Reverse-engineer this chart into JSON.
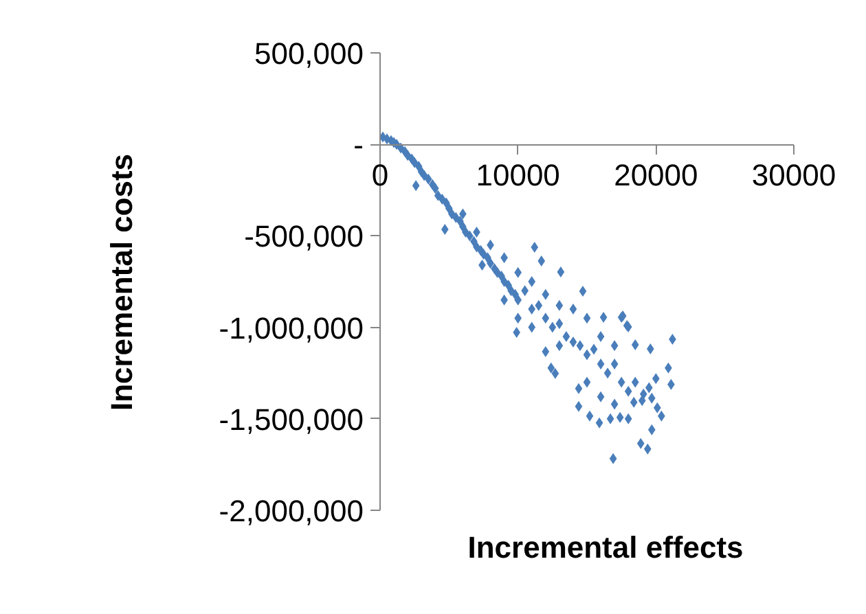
{
  "chart_data": {
    "type": "scatter",
    "xlabel": "Incremental effects",
    "ylabel": "Incremental costs",
    "xlim": [
      0,
      30000
    ],
    "ylim": [
      -2000000,
      500000
    ],
    "xticks": [
      0,
      10000,
      20000,
      30000
    ],
    "yticks": [
      {
        "value": 500000,
        "label": "500,000"
      },
      {
        "value": 0,
        "label": "-"
      },
      {
        "value": -500000,
        "label": "-500,000"
      },
      {
        "value": -1000000,
        "label": "-1,000,000"
      },
      {
        "value": -1500000,
        "label": "-1,500,000"
      },
      {
        "value": -2000000,
        "label": "-2,000,000"
      }
    ],
    "grid": false,
    "marker": "diamond",
    "series": [
      {
        "color": "#4a7ebb",
        "x": [
          200,
          500,
          800,
          1000,
          1200,
          1500,
          1800,
          2000,
          2300,
          2500,
          2800,
          3000,
          3200,
          3500,
          3800,
          4000,
          4200,
          4500,
          4800,
          5000,
          5200,
          5500,
          5800,
          6000,
          6200,
          6500,
          6800,
          7000,
          7300,
          7500,
          7800,
          8000,
          8300,
          8500,
          8800,
          9000,
          9300,
          9500,
          9800,
          10000,
          2600,
          4700,
          7400,
          11200,
          11700,
          13100,
          14700,
          17600,
          17900,
          21200,
          16900,
          18900,
          19400,
          14400,
          15200,
          15900,
          16700,
          17400,
          19700,
          21100,
          20900,
          20400,
          19600,
          18500,
          18000,
          17500,
          16200,
          9900,
          12400,
          12700,
          12000,
          14400,
          18400,
          19100,
          19700,
          20100,
          10500,
          11000,
          11500,
          12000,
          12500,
          13000,
          13500,
          14000,
          14500,
          15000,
          15500,
          16000,
          16500,
          17000,
          17500,
          18000,
          18500,
          19000,
          19500,
          20000,
          10000,
          11000,
          12000,
          13000,
          14000,
          15000,
          16000,
          17000,
          8000,
          9000,
          6000,
          7000,
          9000,
          10000,
          11000,
          13000,
          15000,
          16000,
          17000,
          18000
        ],
        "values": [
          40000,
          30000,
          20000,
          10000,
          0,
          -20000,
          -40000,
          -60000,
          -80000,
          -100000,
          -120000,
          -150000,
          -170000,
          -190000,
          -220000,
          -240000,
          -280000,
          -300000,
          -320000,
          -350000,
          -380000,
          -400000,
          -420000,
          -450000,
          -480000,
          -500000,
          -530000,
          -560000,
          -580000,
          -600000,
          -620000,
          -650000,
          -680000,
          -700000,
          -720000,
          -750000,
          -770000,
          -800000,
          -820000,
          -850000,
          -225000,
          -465000,
          -660000,
          -562500,
          -637500,
          -697500,
          -802500,
          -937500,
          -990000,
          -1065000,
          -1717500,
          -1635000,
          -1665000,
          -1432500,
          -1485000,
          -1522500,
          -1500000,
          -1492500,
          -1560000,
          -1312500,
          -1222500,
          -1485000,
          -1117500,
          -1095000,
          -997500,
          -945000,
          -945000,
          -1027500,
          -1222500,
          -1252500,
          -1132500,
          -1335000,
          -1410000,
          -1365000,
          -1387500,
          -1440000,
          -800000,
          -900000,
          -880000,
          -950000,
          -1000000,
          -980000,
          -1050000,
          -1080000,
          -1100000,
          -1150000,
          -1120000,
          -1200000,
          -1250000,
          -1200000,
          -1300000,
          -1350000,
          -1300000,
          -1400000,
          -1330000,
          -1280000,
          -700000,
          -750000,
          -820000,
          -880000,
          -900000,
          -950000,
          -1050000,
          -1100000,
          -550000,
          -620000,
          -380000,
          -480000,
          -850000,
          -950000,
          -1000000,
          -1100000,
          -1300000,
          -1380000,
          -1420000,
          -1500000
        ]
      }
    ]
  }
}
